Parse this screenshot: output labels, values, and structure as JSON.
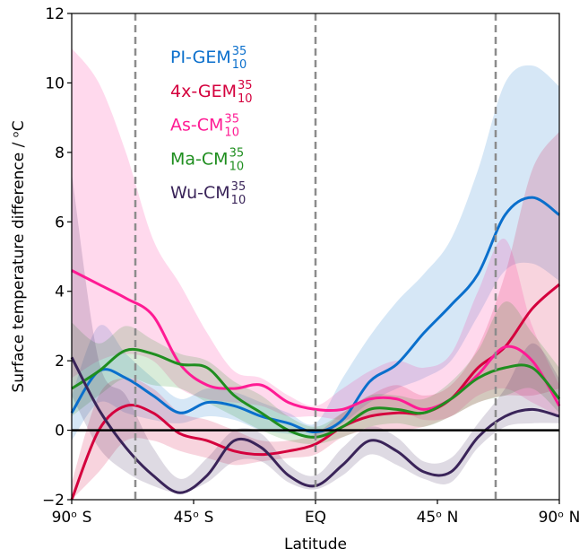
{
  "chart_data": {
    "type": "line",
    "xlabel": "Latitude",
    "ylabel": "Surface temperature difference / ᵒC",
    "x": [
      -90,
      -80,
      -70,
      -60,
      -50,
      -40,
      -30,
      -20,
      -10,
      0,
      10,
      20,
      30,
      40,
      50,
      60,
      70,
      80,
      90
    ],
    "xlim": [
      -90,
      90
    ],
    "xticks": [
      {
        "value": -90,
        "label": "90ᵒ S"
      },
      {
        "value": -45,
        "label": "45ᵒ S"
      },
      {
        "value": 0,
        "label": "EQ"
      },
      {
        "value": 45,
        "label": "45ᵒ N"
      },
      {
        "value": 90,
        "label": "90ᵒ N"
      }
    ],
    "ylim": [
      -2,
      12
    ],
    "yticks": [
      {
        "value": -2,
        "label": "−2"
      },
      0,
      2,
      4,
      6,
      8,
      10,
      12
    ],
    "vlines": [
      -66.5,
      0,
      66.5
    ],
    "hline": 0,
    "series": [
      {
        "name": "PI-GEM",
        "name_sup": "35",
        "name_sub": "10",
        "color": "#0a6fcc",
        "values": [
          0.5,
          1.7,
          1.5,
          1.0,
          0.5,
          0.8,
          0.7,
          0.4,
          0.2,
          -0.05,
          0.3,
          1.4,
          1.9,
          2.8,
          3.6,
          4.5,
          6.2,
          6.7,
          6.2
        ],
        "low": [
          -0.3,
          0.8,
          0.5,
          0.3,
          0.2,
          0.4,
          0.3,
          0.0,
          -0.1,
          -0.2,
          0.2,
          0.8,
          1.2,
          1.5,
          2.0,
          3.3,
          4.6,
          4.8,
          4.3
        ],
        "high": [
          1.0,
          3.0,
          2.2,
          1.5,
          0.9,
          1.2,
          1.1,
          0.8,
          0.5,
          0.2,
          1.5,
          2.7,
          3.7,
          4.5,
          5.5,
          7.5,
          10.0,
          10.5,
          9.9
        ]
      },
      {
        "name": "4x-GEM",
        "name_sup": "35",
        "name_sub": "10",
        "color": "#d4003d",
        "values": [
          -2.0,
          0.0,
          0.7,
          0.5,
          -0.1,
          -0.3,
          -0.6,
          -0.7,
          -0.6,
          -0.4,
          0.1,
          0.4,
          0.5,
          0.5,
          0.9,
          1.8,
          2.4,
          3.5,
          4.2
        ],
        "low": [
          -2.0,
          -1.2,
          -0.3,
          -0.3,
          -0.6,
          -0.8,
          -1.0,
          -0.9,
          -0.8,
          -0.7,
          -0.2,
          0.0,
          0.0,
          0.1,
          0.4,
          0.8,
          1.0,
          1.0,
          1.2
        ],
        "high": [
          -1.5,
          1.0,
          1.5,
          1.2,
          0.5,
          0.3,
          0.0,
          -0.3,
          -0.3,
          -0.1,
          0.5,
          1.0,
          1.3,
          1.0,
          1.3,
          2.4,
          4.5,
          7.5,
          8.6
        ]
      },
      {
        "name": "As-CM",
        "name_sup": "35",
        "name_sub": "10",
        "color": "#ff1b94",
        "values": [
          4.6,
          4.2,
          3.8,
          3.3,
          1.9,
          1.3,
          1.2,
          1.3,
          0.8,
          0.6,
          0.6,
          0.9,
          0.9,
          0.6,
          0.9,
          1.6,
          2.4,
          2.0,
          0.7
        ],
        "low": [
          1.5,
          2.0,
          2.2,
          2.0,
          1.2,
          0.9,
          0.8,
          0.7,
          0.4,
          0.4,
          0.3,
          0.4,
          0.6,
          0.3,
          0.4,
          1.0,
          1.2,
          0.8,
          0.4
        ],
        "high": [
          11.0,
          10.0,
          8.0,
          5.5,
          4.2,
          2.8,
          1.7,
          1.5,
          1.0,
          0.7,
          1.2,
          1.7,
          2.0,
          1.8,
          2.2,
          4.0,
          5.5,
          3.0,
          1.3
        ]
      },
      {
        "name": "Ma-CM",
        "name_sup": "35",
        "name_sub": "10",
        "color": "#1f8e1f",
        "values": [
          1.2,
          1.7,
          2.3,
          2.2,
          1.9,
          1.8,
          1.0,
          0.5,
          0.0,
          -0.2,
          0.1,
          0.6,
          0.6,
          0.5,
          0.9,
          1.5,
          1.8,
          1.8,
          0.9
        ],
        "low": [
          0.4,
          1.0,
          1.5,
          1.3,
          1.2,
          0.8,
          0.4,
          0.0,
          -0.3,
          -0.4,
          -0.2,
          0.1,
          0.2,
          0.1,
          0.4,
          0.8,
          1.0,
          1.2,
          0.5
        ],
        "high": [
          3.1,
          2.5,
          3.0,
          2.6,
          2.2,
          2.0,
          1.4,
          1.0,
          0.4,
          0.1,
          0.5,
          1.0,
          1.0,
          0.9,
          1.4,
          2.3,
          3.7,
          2.8,
          1.8
        ]
      },
      {
        "name": "Wu-CM",
        "name_sup": "35",
        "name_sub": "10",
        "color": "#3a2459",
        "values": [
          2.1,
          0.6,
          -0.5,
          -1.3,
          -1.8,
          -1.3,
          -0.3,
          -0.5,
          -1.3,
          -1.6,
          -1.0,
          -0.3,
          -0.6,
          -1.2,
          -1.2,
          -0.2,
          0.4,
          0.6,
          0.4
        ],
        "low": [
          1.0,
          -0.5,
          -1.2,
          -1.6,
          -1.8,
          -1.5,
          -0.9,
          -0.9,
          -1.5,
          -1.7,
          -1.3,
          -0.7,
          -1.0,
          -1.4,
          -1.5,
          -0.5,
          0.1,
          0.2,
          0.2
        ],
        "high": [
          7.4,
          2.0,
          1.0,
          -0.5,
          -1.4,
          -0.8,
          0.0,
          -0.1,
          -1.0,
          -1.3,
          -0.5,
          0.1,
          -0.2,
          -0.9,
          -0.8,
          0.2,
          1.2,
          2.5,
          1.5
        ]
      }
    ]
  }
}
